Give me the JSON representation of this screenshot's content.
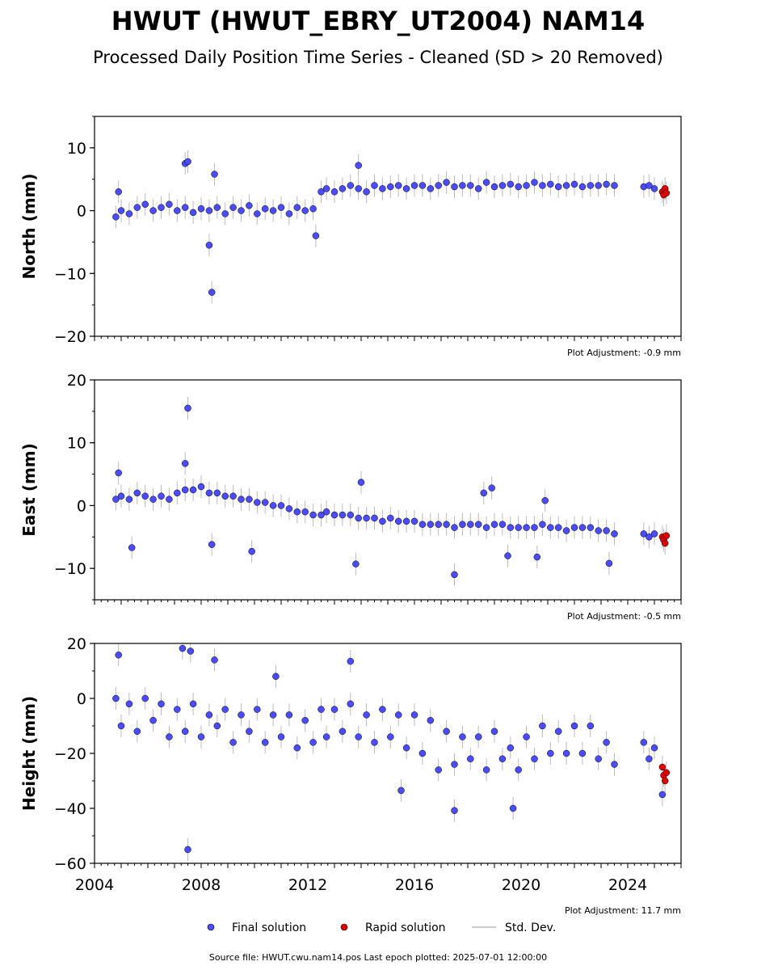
{
  "title": "HWUT (HWUT_EBRY_UT2004) NAM14",
  "subtitle": "Processed Daily Position Time Series - Cleaned (SD > 20 Removed)",
  "legend": {
    "final": "Final solution",
    "rapid": "Rapid solution",
    "std": "Std. Dev."
  },
  "source_text": "Source file: HWUT.cwu.nam14.pos  Last epoch plotted: 2025-07-01 12:00:00",
  "colors": {
    "final": "#4b4bff",
    "rapid": "#e00000",
    "std": "#bbbbbb",
    "edge": "#000000"
  },
  "chart_data": [
    {
      "type": "scatter",
      "ylabel": "North (mm)",
      "adjustment": "Plot Adjustment: -0.9 mm",
      "xlim": [
        2004.0,
        2026.0
      ],
      "ylim": [
        -20,
        15
      ],
      "yticks": [
        10,
        0,
        -10,
        -20
      ],
      "ytick_labels": [
        "10",
        "0",
        "−10",
        "−20"
      ],
      "show_xtick_labels": false,
      "series": [
        {
          "name": "Final solution",
          "x": [
            2004.8,
            2005.0,
            2005.3,
            2005.6,
            2005.9,
            2006.2,
            2006.5,
            2006.8,
            2007.1,
            2007.4,
            2007.7,
            2008.0,
            2008.3,
            2008.6,
            2008.9,
            2009.2,
            2009.5,
            2009.8,
            2010.1,
            2010.4,
            2010.7,
            2011.0,
            2011.3,
            2011.6,
            2011.9,
            2012.2,
            2012.5,
            2012.7,
            2013.0,
            2013.3,
            2013.6,
            2013.9,
            2014.2,
            2014.5,
            2014.8,
            2015.1,
            2015.4,
            2015.7,
            2016.0,
            2016.3,
            2016.6,
            2016.9,
            2017.2,
            2017.5,
            2017.8,
            2018.1,
            2018.4,
            2018.7,
            2019.0,
            2019.3,
            2019.6,
            2019.9,
            2020.2,
            2020.5,
            2020.8,
            2021.1,
            2021.4,
            2021.7,
            2022.0,
            2022.3,
            2022.6,
            2022.9,
            2023.2,
            2023.5,
            2024.6,
            2024.8,
            2025.0
          ],
          "y": [
            -1.0,
            0.0,
            -0.5,
            0.5,
            1.0,
            0.0,
            0.5,
            1.0,
            0.0,
            0.5,
            -0.3,
            0.3,
            0.0,
            0.5,
            -0.5,
            0.5,
            0.0,
            0.8,
            -0.5,
            0.3,
            0.0,
            0.5,
            -0.5,
            0.5,
            0.0,
            0.3,
            3.0,
            3.5,
            3.0,
            3.5,
            4.0,
            3.5,
            3.0,
            4.0,
            3.5,
            3.8,
            4.0,
            3.5,
            4.0,
            4.0,
            3.5,
            4.0,
            4.5,
            3.8,
            4.0,
            4.0,
            3.5,
            4.5,
            3.8,
            4.0,
            4.2,
            3.8,
            4.0,
            4.5,
            4.0,
            4.2,
            3.8,
            4.0,
            4.2,
            3.8,
            4.0,
            4.0,
            4.2,
            4.0,
            3.8,
            4.0,
            3.5
          ],
          "outliers_x": [
            2004.9,
            2007.4,
            2007.5,
            2008.3,
            2008.4,
            2008.5,
            2012.3,
            2013.9
          ],
          "outliers_y": [
            3.0,
            7.5,
            7.8,
            -5.5,
            -13.0,
            5.8,
            -4.0,
            7.2
          ]
        },
        {
          "name": "Rapid solution",
          "x": [
            2025.3,
            2025.35,
            2025.4,
            2025.45
          ],
          "y": [
            3.0,
            2.5,
            3.5,
            2.8
          ]
        }
      ]
    },
    {
      "type": "scatter",
      "ylabel": "East (mm)",
      "adjustment": "Plot Adjustment: -0.5 mm",
      "xlim": [
        2004.0,
        2026.0
      ],
      "ylim": [
        -15,
        20
      ],
      "yticks": [
        20,
        10,
        0,
        -10
      ],
      "ytick_labels": [
        "20",
        "10",
        "0",
        "−10"
      ],
      "show_xtick_labels": false,
      "series": [
        {
          "name": "Final solution",
          "x": [
            2004.8,
            2005.0,
            2005.3,
            2005.6,
            2005.9,
            2006.2,
            2006.5,
            2006.8,
            2007.1,
            2007.4,
            2007.7,
            2008.0,
            2008.3,
            2008.6,
            2008.9,
            2009.2,
            2009.5,
            2009.8,
            2010.1,
            2010.4,
            2010.7,
            2011.0,
            2011.3,
            2011.6,
            2011.9,
            2012.2,
            2012.5,
            2012.7,
            2013.0,
            2013.3,
            2013.6,
            2013.9,
            2014.2,
            2014.5,
            2014.8,
            2015.1,
            2015.4,
            2015.7,
            2016.0,
            2016.3,
            2016.6,
            2016.9,
            2017.2,
            2017.5,
            2017.8,
            2018.1,
            2018.4,
            2018.7,
            2019.0,
            2019.3,
            2019.6,
            2019.9,
            2020.2,
            2020.5,
            2020.8,
            2021.1,
            2021.4,
            2021.7,
            2022.0,
            2022.3,
            2022.6,
            2022.9,
            2023.2,
            2023.5,
            2024.6,
            2024.8,
            2025.0
          ],
          "y": [
            1.0,
            1.5,
            1.0,
            2.0,
            1.5,
            1.0,
            1.5,
            1.0,
            2.0,
            2.5,
            2.5,
            3.0,
            2.0,
            2.0,
            1.5,
            1.5,
            1.0,
            1.0,
            0.5,
            0.5,
            0.0,
            0.0,
            -0.5,
            -1.0,
            -1.0,
            -1.5,
            -1.5,
            -1.0,
            -1.5,
            -1.5,
            -1.5,
            -2.0,
            -2.0,
            -2.0,
            -2.5,
            -2.0,
            -2.5,
            -2.5,
            -2.5,
            -3.0,
            -3.0,
            -3.0,
            -3.0,
            -3.5,
            -3.0,
            -3.0,
            -3.0,
            -3.5,
            -3.0,
            -3.0,
            -3.5,
            -3.5,
            -3.5,
            -3.5,
            -3.0,
            -3.5,
            -3.5,
            -4.0,
            -3.5,
            -3.5,
            -3.5,
            -4.0,
            -4.0,
            -4.5,
            -4.5,
            -5.0,
            -4.5
          ],
          "outliers_x": [
            2004.9,
            2005.4,
            2007.4,
            2007.5,
            2008.4,
            2009.9,
            2013.8,
            2014.0,
            2017.5,
            2018.6,
            2018.9,
            2019.5,
            2020.6,
            2020.9,
            2023.3
          ],
          "outliers_y": [
            5.2,
            -6.7,
            6.7,
            15.5,
            -6.2,
            -7.3,
            -9.3,
            3.7,
            -11.0,
            2.0,
            2.8,
            -8.0,
            -8.2,
            0.8,
            -9.2
          ]
        },
        {
          "name": "Rapid solution",
          "x": [
            2025.3,
            2025.35,
            2025.4,
            2025.45
          ],
          "y": [
            -5.0,
            -5.5,
            -6.0,
            -4.8
          ]
        }
      ]
    },
    {
      "type": "scatter",
      "ylabel": "Height (mm)",
      "adjustment": "Plot Adjustment: 11.7 mm",
      "xlim": [
        2004.0,
        2026.0
      ],
      "ylim": [
        -60,
        20
      ],
      "yticks": [
        20,
        0,
        -20,
        -40,
        -60
      ],
      "ytick_labels": [
        "20",
        "0",
        "−20",
        "−40",
        "−60"
      ],
      "xticks": [
        2004,
        2008,
        2012,
        2016,
        2020,
        2024
      ],
      "xtick_labels": [
        "2004",
        "2008",
        "2012",
        "2016",
        "2020",
        "2024"
      ],
      "show_xtick_labels": true,
      "series": [
        {
          "name": "Final solution",
          "x": [
            2004.8,
            2005.0,
            2005.3,
            2005.6,
            2005.9,
            2006.2,
            2006.5,
            2006.8,
            2007.1,
            2007.4,
            2007.7,
            2008.0,
            2008.3,
            2008.6,
            2008.9,
            2009.2,
            2009.5,
            2009.8,
            2010.1,
            2010.4,
            2010.7,
            2011.0,
            2011.3,
            2011.6,
            2011.9,
            2012.2,
            2012.5,
            2012.7,
            2013.0,
            2013.3,
            2013.6,
            2013.9,
            2014.2,
            2014.5,
            2014.8,
            2015.1,
            2015.4,
            2015.7,
            2016.0,
            2016.3,
            2016.6,
            2016.9,
            2017.2,
            2017.5,
            2017.8,
            2018.1,
            2018.4,
            2018.7,
            2019.0,
            2019.3,
            2019.6,
            2019.9,
            2020.2,
            2020.5,
            2020.8,
            2021.1,
            2021.4,
            2021.7,
            2022.0,
            2022.3,
            2022.6,
            2022.9,
            2023.2,
            2023.5,
            2024.6,
            2024.8,
            2025.0
          ],
          "y": [
            0.0,
            -10.0,
            -2.0,
            -12.0,
            0.0,
            -8.0,
            -2.0,
            -14.0,
            -4.0,
            -12.0,
            -2.0,
            -14.0,
            -6.0,
            -10.0,
            -4.0,
            -16.0,
            -6.0,
            -12.0,
            -4.0,
            -16.0,
            -6.0,
            -14.0,
            -6.0,
            -18.0,
            -8.0,
            -16.0,
            -4.0,
            -14.0,
            -4.0,
            -12.0,
            -2.0,
            -14.0,
            -6.0,
            -16.0,
            -4.0,
            -14.0,
            -6.0,
            -18.0,
            -6.0,
            -20.0,
            -8.0,
            -26.0,
            -12.0,
            -24.0,
            -14.0,
            -22.0,
            -14.0,
            -26.0,
            -12.0,
            -22.0,
            -18.0,
            -26.0,
            -14.0,
            -22.0,
            -10.0,
            -20.0,
            -12.0,
            -20.0,
            -10.0,
            -20.0,
            -10.0,
            -22.0,
            -16.0,
            -24.0,
            -16.0,
            -22.0,
            -18.0
          ],
          "outliers_x": [
            2004.9,
            2007.3,
            2007.5,
            2007.6,
            2008.5,
            2010.8,
            2013.6,
            2015.5,
            2017.5,
            2019.7,
            2025.3
          ],
          "outliers_y": [
            15.8,
            18.2,
            -55.0,
            17.2,
            14.0,
            8.0,
            13.5,
            -33.5,
            -40.8,
            -40.0,
            -35.0
          ]
        },
        {
          "name": "Rapid solution",
          "x": [
            2025.3,
            2025.35,
            2025.4,
            2025.45
          ],
          "y": [
            -25.0,
            -28.0,
            -30.0,
            -27.0
          ]
        }
      ]
    }
  ]
}
